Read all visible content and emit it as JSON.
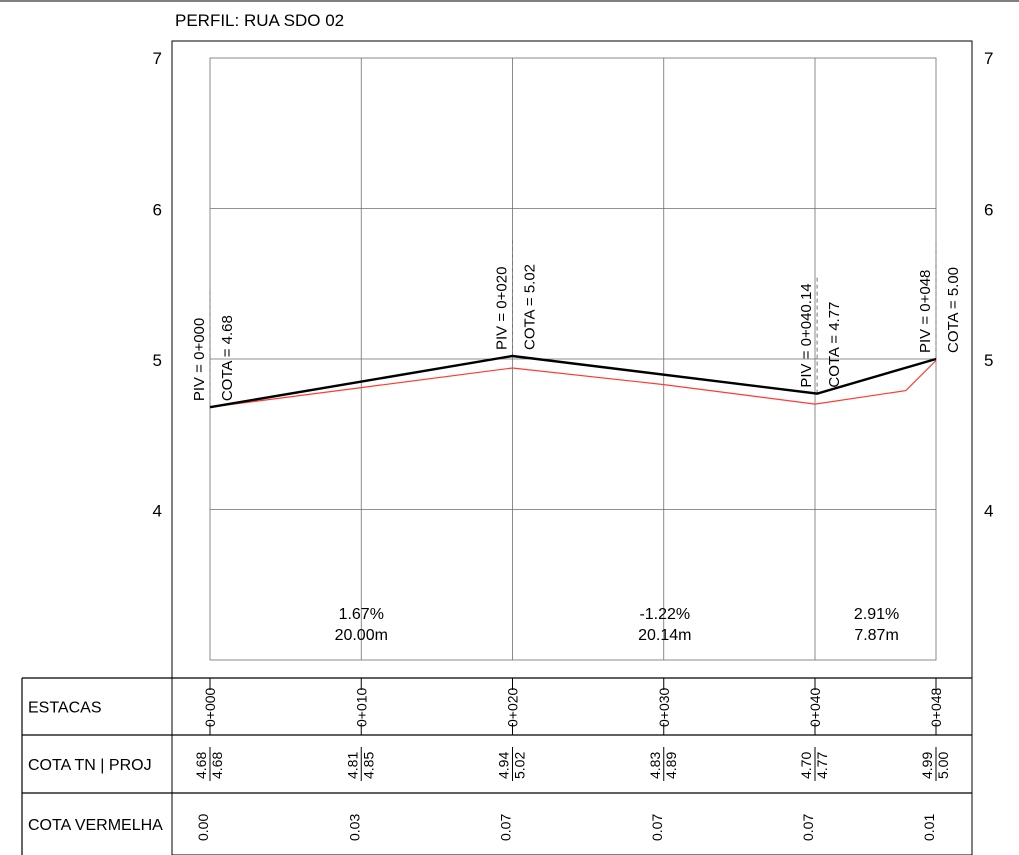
{
  "title": "PERFIL: RUA SDO 02",
  "chart_data": {
    "type": "line",
    "title": "PERFIL: RUA SDO 02",
    "xlim": [
      0,
      48
    ],
    "ylim": [
      3,
      7
    ],
    "y_ticks": [
      "4",
      "5",
      "6",
      "7"
    ],
    "grid": true,
    "series": [
      {
        "name": "PROJ",
        "color": "#000000",
        "points": [
          [
            0,
            4.68
          ],
          [
            20,
            5.02
          ],
          [
            40.14,
            4.77
          ],
          [
            48,
            5.0
          ]
        ]
      },
      {
        "name": "TN",
        "color": "#ff3b30",
        "points": [
          [
            0,
            4.68
          ],
          [
            10,
            4.81
          ],
          [
            20,
            4.94
          ],
          [
            30,
            4.83
          ],
          [
            40,
            4.7
          ],
          [
            46,
            4.79
          ],
          [
            48,
            4.99
          ]
        ]
      }
    ],
    "pivs": [
      {
        "station": 0,
        "elev": 4.68,
        "piv_label": "PIV = 0+000",
        "cota_label": "COTA =  4.68"
      },
      {
        "station": 20,
        "elev": 5.02,
        "piv_label": "PIV = 0+020",
        "cota_label": "COTA =  5.02"
      },
      {
        "station": 40.14,
        "elev": 4.77,
        "piv_label": "PIV = 0+040.14",
        "cota_label": "COTA =  4.77"
      },
      {
        "station": 48,
        "elev": 5.0,
        "piv_label": "PIV = 0+048",
        "cota_label": "COTA =  5.00"
      }
    ],
    "grades": [
      {
        "x_mid": 10,
        "grade": "1.67%",
        "length": "20.00m"
      },
      {
        "x_mid": 30.07,
        "grade": "-1.22%",
        "length": "20.14m"
      },
      {
        "x_mid": 44.07,
        "grade": "2.91%",
        "length": "7.87m"
      }
    ],
    "table": {
      "row_labels": [
        "ESTACAS",
        "COTA TN | PROJ",
        "COTA VERMELHA"
      ],
      "stations": [
        {
          "x": 0,
          "estaca": "0+000",
          "tn": "4.68",
          "proj": "4.68",
          "vermelha": "0.00"
        },
        {
          "x": 10,
          "estaca": "0+010",
          "tn": "4.81",
          "proj": "4.85",
          "vermelha": "0.03"
        },
        {
          "x": 20,
          "estaca": "0+020",
          "tn": "4.94",
          "proj": "5.02",
          "vermelha": "0.07"
        },
        {
          "x": 30,
          "estaca": "0+030",
          "tn": "4.83",
          "proj": "4.89",
          "vermelha": "0.07"
        },
        {
          "x": 40,
          "estaca": "0+040",
          "tn": "4.70",
          "proj": "4.77",
          "vermelha": "0.07"
        },
        {
          "x": 48,
          "estaca": "0+048",
          "tn": "4.99",
          "proj": "5.00",
          "vermelha": "0.01"
        }
      ]
    }
  }
}
